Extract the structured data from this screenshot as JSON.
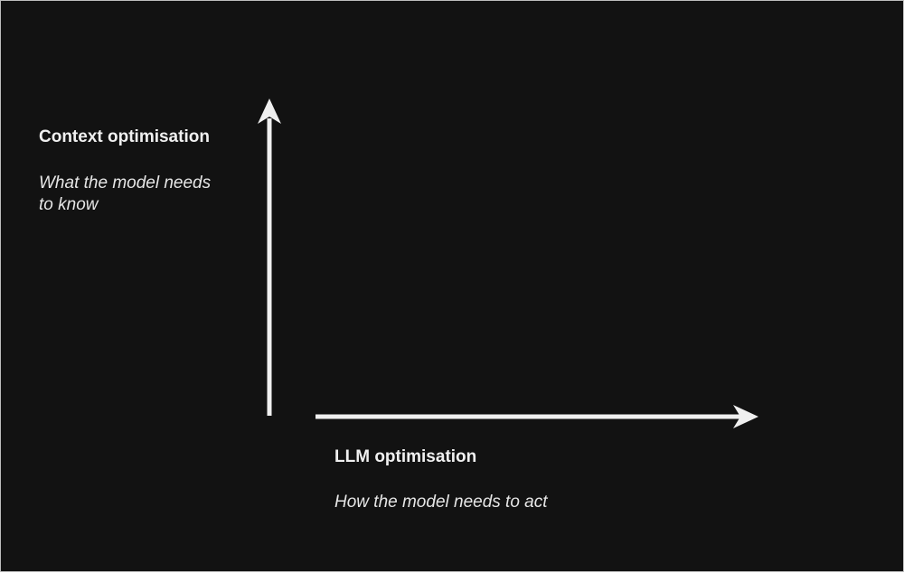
{
  "diagram": {
    "background_color": "#121212",
    "arrow_color": "#f0f0f0",
    "vertical_axis": {
      "title": "Context optimisation",
      "subtitle": "What the model needs\nto know",
      "direction": "up"
    },
    "horizontal_axis": {
      "title": "LLM optimisation",
      "subtitle": "How the model needs to act",
      "direction": "right"
    }
  }
}
